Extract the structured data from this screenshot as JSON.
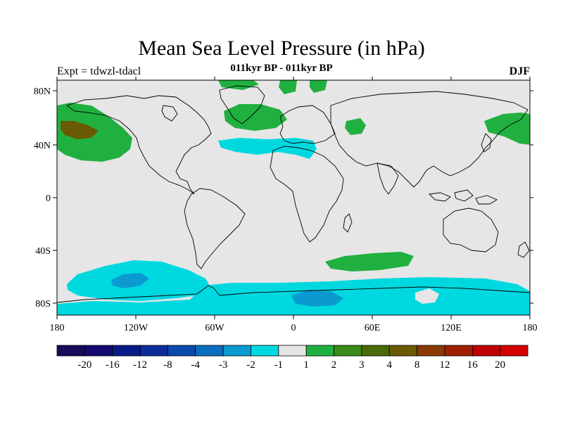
{
  "title": "Mean Sea Level Pressure (in hPa)",
  "subtitle": "011kyr BP - 011kyr BP",
  "left_label": "Expt = tdwzl-tdacl",
  "right_label": "DJF",
  "map": {
    "lon_ticks": [
      "180",
      "120W",
      "60W",
      "0",
      "60E",
      "120E",
      "180"
    ],
    "lat_ticks": [
      "80N",
      "40N",
      "0",
      "40S",
      "80S"
    ],
    "background_color": "#e6e6e6",
    "coast_color": "#000000"
  },
  "colorbar": {
    "colors": [
      "#1a0a5a",
      "#140a70",
      "#0a1a88",
      "#0a2d9a",
      "#0a4aaa",
      "#0a6ebf",
      "#0a9ad0",
      "#00d8e0",
      "#e6e6e6",
      "#20b040",
      "#3a8a1a",
      "#4a6a08",
      "#6a5a04",
      "#8a3a04",
      "#a02000",
      "#c00000",
      "#d40000"
    ],
    "labels": [
      "-20",
      "-16",
      "-12",
      "-8",
      "-4",
      "-3",
      "-2",
      "-1",
      "1",
      "2",
      "3",
      "4",
      "8",
      "12",
      "16",
      "20"
    ]
  }
}
